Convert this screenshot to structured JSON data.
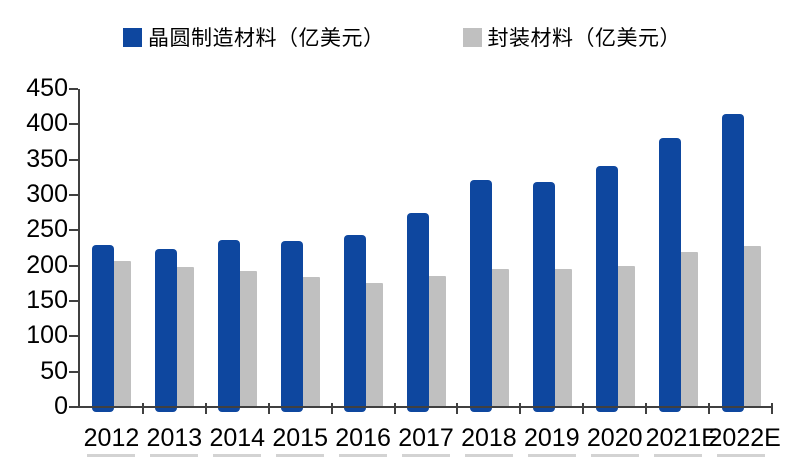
{
  "chart": {
    "background": "#FFFFFF",
    "axis_color": "#404040",
    "text_color": "#000000"
  },
  "chart_data": {
    "type": "bar",
    "title": "",
    "categories": [
      "2012",
      "2013",
      "2014",
      "2015",
      "2016",
      "2017",
      "2018",
      "2019",
      "2020",
      "2021E",
      "2022E"
    ],
    "series": [
      {
        "name": "晶圆制造材料（亿美元）",
        "color": "#0E479F",
        "values": [
          229,
          223,
          237,
          235,
          244,
          275,
          321,
          319,
          341,
          381,
          415
        ]
      },
      {
        "name": "封装材料（亿美元）",
        "color": "#C0C0C0",
        "values": [
          207,
          198,
          192,
          184,
          176,
          186,
          196,
          195,
          199,
          220,
          228
        ]
      }
    ],
    "xlabel": "",
    "ylabel": "",
    "ylim": [
      0,
      450
    ],
    "yticks": [
      0,
      50,
      100,
      150,
      200,
      250,
      300,
      350,
      400,
      450
    ],
    "grid": false,
    "legend_position": "top"
  }
}
